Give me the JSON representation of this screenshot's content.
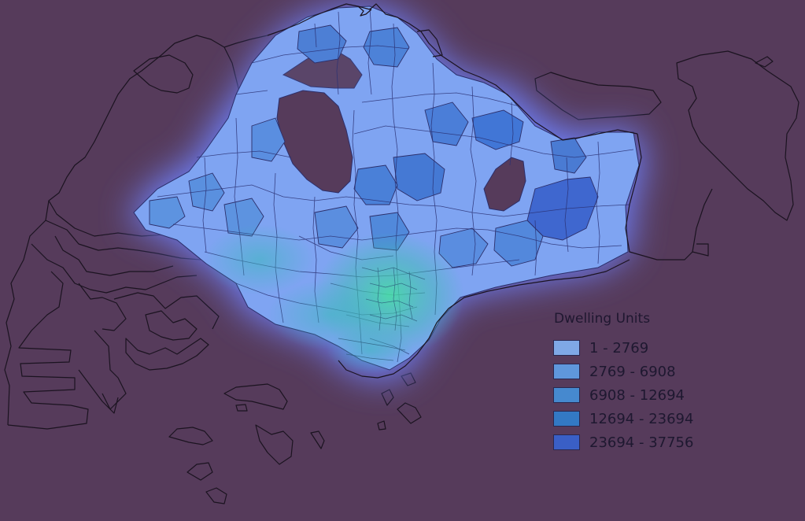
{
  "legend": {
    "title": "Dwelling Units",
    "classes": [
      {
        "label": "1 - 2769",
        "color": "#7fa8e6"
      },
      {
        "label": "2769 - 6908",
        "color": "#5f97dc"
      },
      {
        "label": "6908 - 12694",
        "color": "#4689cf"
      },
      {
        "label": "12694 - 23694",
        "color": "#3379c4"
      },
      {
        "label": "23694 - 37756",
        "color": "#3a5fc6"
      }
    ]
  },
  "colors": {
    "background": "#563b5b",
    "outline": "#1b1320",
    "glow": "#5577ff",
    "hotspot": "#3fd3a0"
  }
}
